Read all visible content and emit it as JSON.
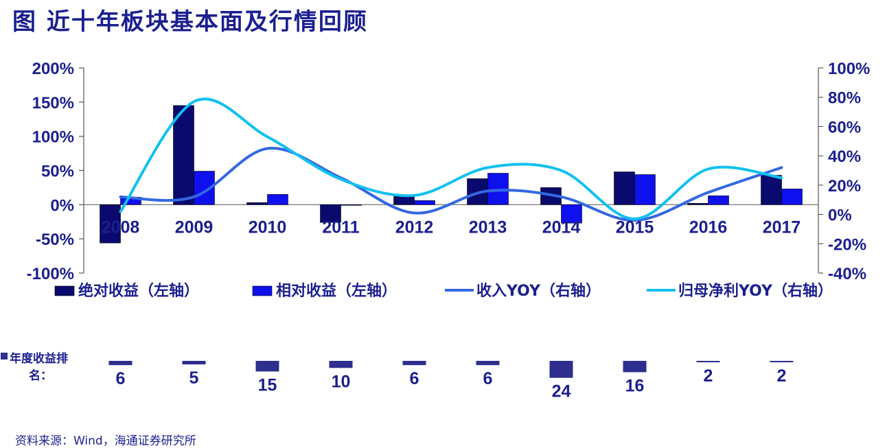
{
  "page": {
    "title": "图   近十年板块基本面及行情回顾",
    "source": "资料来源：Wind，海通证券研究所"
  },
  "rank": {
    "label_line1": "年度收益排",
    "label_line2": "名：",
    "values": [
      6,
      5,
      15,
      10,
      6,
      6,
      24,
      16,
      2,
      2
    ],
    "color": "#2e2e8f"
  },
  "chart_data": {
    "type": "bar",
    "categories": [
      "2008",
      "2009",
      "2010",
      "2011",
      "2012",
      "2013",
      "2014",
      "2015",
      "2016",
      "2017"
    ],
    "left_axis": {
      "ylim": [
        -100,
        200
      ],
      "ticks": [
        -100,
        -50,
        0,
        50,
        100,
        150,
        200
      ],
      "unit": "%"
    },
    "right_axis": {
      "ylim": [
        -40,
        100
      ],
      "ticks": [
        -40,
        -20,
        0,
        20,
        40,
        60,
        80,
        100
      ],
      "unit": "%"
    },
    "series": [
      {
        "name": "绝对收益（左轴）",
        "kind": "bar",
        "axis": "left",
        "color": "#0a0a6e",
        "values": [
          -56,
          145,
          3,
          -26,
          12,
          38,
          25,
          48,
          2,
          43
        ]
      },
      {
        "name": "相对收益（左轴）",
        "kind": "bar",
        "axis": "left",
        "color": "#0f10ee",
        "values": [
          11,
          49,
          15,
          -1,
          6,
          46,
          -27,
          44,
          13,
          23
        ]
      },
      {
        "name": "收入YOY（右轴）",
        "kind": "line",
        "axis": "right",
        "color": "#3468e2",
        "values": [
          12,
          12,
          45,
          25,
          1,
          16,
          12,
          -4,
          15,
          32
        ]
      },
      {
        "name": "归母净利YOY（右轴）",
        "kind": "line",
        "axis": "right",
        "color": "#11c0f0",
        "values": [
          2,
          77,
          53,
          24,
          13,
          32,
          30,
          -3,
          31,
          25
        ]
      }
    ],
    "legend": "bottom",
    "grid": false
  }
}
